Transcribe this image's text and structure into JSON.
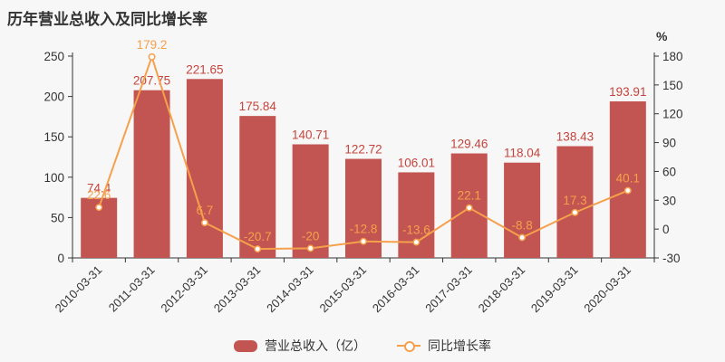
{
  "title": "历年营业总收入及同比增长率",
  "legend": {
    "items": [
      {
        "label": "营业总收入（亿）",
        "type": "bar"
      },
      {
        "label": "同比增长率",
        "type": "line"
      }
    ]
  },
  "colors": {
    "background": "#f7f7f7",
    "axis_text": "#333333",
    "bar": "#c25551",
    "bar_label": "#c5443c",
    "line": "#f5a04c"
  },
  "chart_data": {
    "type": "bar",
    "title": "历年营业总收入及同比增长率",
    "categories": [
      "2010-03-31",
      "2011-03-31",
      "2012-03-31",
      "2013-03-31",
      "2014-03-31",
      "2015-03-31",
      "2016-03-31",
      "2017-03-31",
      "2018-03-31",
      "2019-03-31",
      "2020-03-31"
    ],
    "series": [
      {
        "name": "营业总收入（亿）",
        "type": "bar",
        "axis": "left",
        "color": "#c25551",
        "label_color": "#c5443c",
        "values": [
          74.4,
          207.75,
          221.65,
          175.84,
          140.71,
          122.72,
          106.01,
          129.46,
          118.04,
          138.43,
          193.91
        ]
      },
      {
        "name": "同比增长率",
        "type": "line",
        "axis": "right",
        "color": "#f5a04c",
        "label_color": "#f5a04c",
        "marker": "open-circle",
        "values": [
          22.6,
          179.2,
          6.7,
          -20.7,
          -20,
          -12.8,
          -13.6,
          22.1,
          -8.8,
          17.3,
          40.1
        ]
      }
    ],
    "left_axis": {
      "min": 0,
      "max": 250,
      "ticks": [
        0,
        50,
        100,
        150,
        200,
        250
      ]
    },
    "right_axis": {
      "min": -30,
      "max": 180,
      "ticks": [
        -30,
        0,
        30,
        60,
        90,
        120,
        150,
        180
      ],
      "unit": "%"
    },
    "grid": false,
    "legend_position": "bottom"
  }
}
